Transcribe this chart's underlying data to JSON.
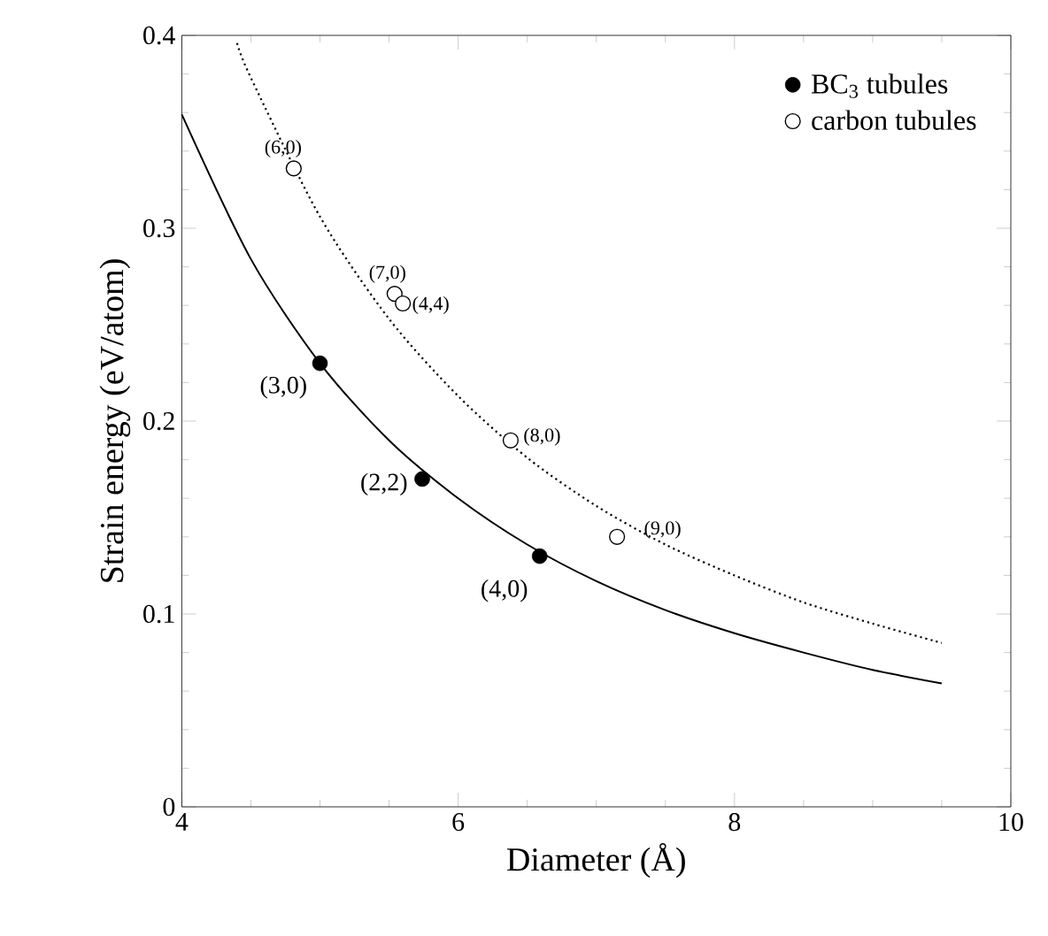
{
  "chart_data": {
    "type": "scatter",
    "xlabel": "Diameter (Å)",
    "ylabel": "Strain energy (eV/atom)",
    "xlim": [
      4,
      10
    ],
    "ylim": [
      0,
      0.4
    ],
    "xticks": [
      4,
      6,
      8,
      10
    ],
    "yticks": [
      0,
      0.1,
      0.2,
      0.3,
      0.4
    ],
    "grid": false,
    "legend": "top right",
    "marker": "circle",
    "series": [
      {
        "name": "BC$_{3}$ tubules",
        "color": "#000000",
        "x": [
          5.0,
          5.74,
          6.59
        ],
        "values": [
          0.23,
          0.17,
          0.13
        ]
      },
      {
        "name": "carbon tubules",
        "color": "#000000",
        "x": [
          4.81,
          5.54,
          5.6,
          6.38,
          7.15
        ],
        "values": [
          0.331,
          0.266,
          0.261,
          0.19,
          0.14
        ]
      },
      {
        "type": "line",
        "line_style": "solid",
        "marker": "none",
        "color": "#000000",
        "x": [
          4,
          4.5,
          5,
          5.5,
          6,
          6.5,
          7,
          7.5,
          8,
          8.5,
          9,
          9.5
        ],
        "values": [
          0.359,
          0.284,
          0.23,
          0.19,
          0.16,
          0.136,
          0.117,
          0.102,
          0.09,
          0.08,
          0.071,
          0.064
        ]
      },
      {
        "type": "line",
        "line_style": "dotted",
        "marker": "none",
        "color": "#000000",
        "x": [
          4.4,
          4.5,
          5,
          5.5,
          6,
          6.5,
          7,
          7.5,
          8,
          8.5,
          9,
          9.5
        ],
        "values": [
          0.396,
          0.378,
          0.306,
          0.253,
          0.213,
          0.181,
          0.156,
          0.136,
          0.12,
          0.106,
          0.095,
          0.085
        ]
      }
    ],
    "annotations": [
      {
        "text": "(3,0)",
        "x": 5.0,
        "y": 0.23
      },
      {
        "text": "(2,2)",
        "x": 5.74,
        "y": 0.17
      },
      {
        "text": "(4,0)",
        "x": 6.59,
        "y": 0.13
      },
      {
        "text": "(6,0)",
        "x": 4.81,
        "y": 0.331
      },
      {
        "text": "(7,0)",
        "x": 5.54,
        "y": 0.266
      },
      {
        "text": "(4,4)",
        "x": 5.6,
        "y": 0.261
      },
      {
        "text": "(8,0)",
        "x": 6.38,
        "y": 0.19
      },
      {
        "text": "(9,0)",
        "x": 7.15,
        "y": 0.14
      }
    ]
  }
}
